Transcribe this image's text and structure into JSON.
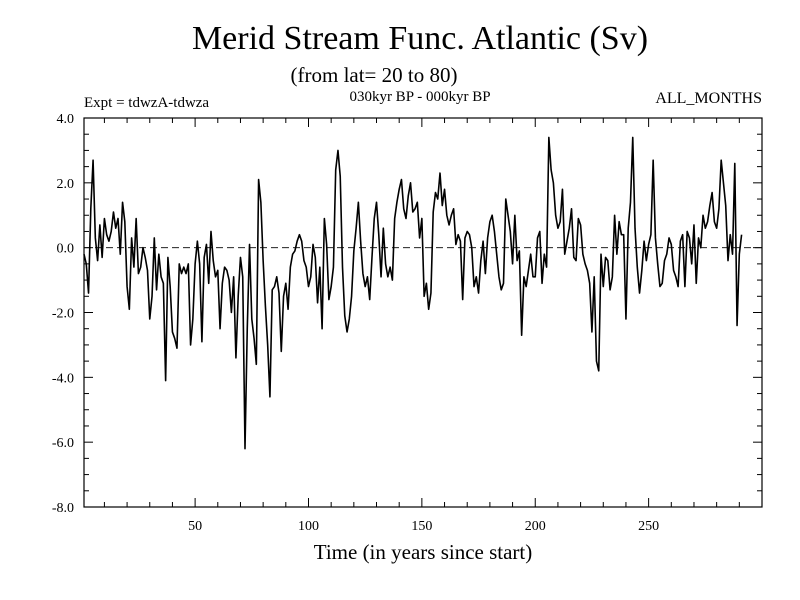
{
  "chart_data": {
    "type": "line",
    "title": "Merid Stream Func. Atlantic (Sv)",
    "subtitle": "(from lat= 20 to 80)",
    "annotations": {
      "left": "Expt = tdwzA-tdwza",
      "center": "030kyr BP - 000kyr BP",
      "right": "ALL_MONTHS"
    },
    "xlabel": "Time (in years since start)",
    "ylabel": "",
    "xlim": [
      1,
      300
    ],
    "ylim": [
      -8,
      4
    ],
    "xticks": [
      50,
      100,
      150,
      200,
      250
    ],
    "xtick_labels": [
      "50",
      "100",
      "150",
      "200",
      "250"
    ],
    "yticks": [
      4,
      2,
      0,
      -2,
      -4,
      -6,
      -8
    ],
    "ytick_labels": [
      "4.0",
      "2.0",
      "0.0",
      "-2.0",
      "-4.0",
      "-6.0",
      "-8.0"
    ],
    "grid": false,
    "reference_line": {
      "y": 0,
      "style": "dashed"
    },
    "colors": {
      "line": "#000000"
    },
    "series": [
      {
        "x_start": 1,
        "x_step": 1,
        "values": [
          -0.2,
          -0.5,
          -1.4,
          1.2,
          2.7,
          0.3,
          -0.4,
          0.7,
          -0.3,
          0.9,
          0.4,
          0.2,
          0.5,
          1.1,
          0.6,
          0.9,
          -0.2,
          1.4,
          0.8,
          -1.2,
          -1.9,
          0.3,
          -0.6,
          0.9,
          -0.8,
          -0.6,
          0.0,
          -0.3,
          -0.7,
          -2.2,
          -1.5,
          0.3,
          -1.3,
          -0.2,
          -0.9,
          -1.1,
          -4.1,
          -0.3,
          -1.2,
          -2.6,
          -2.8,
          -3.1,
          -0.5,
          -0.8,
          -0.6,
          -0.8,
          -0.5,
          -3.0,
          -2.2,
          -0.5,
          0.2,
          -0.5,
          -2.9,
          -0.3,
          0.1,
          -1.1,
          0.5,
          -0.4,
          -0.9,
          -0.7,
          -2.5,
          -1.1,
          -0.6,
          -0.7,
          -1.0,
          -2.0,
          -0.9,
          -3.4,
          -1.5,
          -0.3,
          -0.9,
          -6.2,
          -2.5,
          0.1,
          -2.2,
          -2.8,
          -3.6,
          2.1,
          1.4,
          -0.4,
          -1.8,
          -3.0,
          -4.6,
          -1.3,
          -1.2,
          -0.9,
          -1.4,
          -3.2,
          -1.5,
          -1.1,
          -1.9,
          -0.6,
          -0.2,
          -0.1,
          0.2,
          0.4,
          0.2,
          -0.4,
          -0.6,
          -1.2,
          -0.9,
          0.1,
          -0.3,
          -1.7,
          -0.6,
          -2.5,
          0.9,
          0.1,
          -1.6,
          -1.2,
          -0.6,
          2.4,
          3.0,
          2.2,
          -0.6,
          -2.1,
          -2.6,
          -2.2,
          -1.5,
          -0.1,
          0.6,
          1.4,
          0.2,
          -0.8,
          -1.2,
          -0.9,
          -1.6,
          -0.3,
          0.9,
          1.4,
          0.4,
          -0.9,
          0.6,
          -0.5,
          -0.9,
          -0.6,
          -1.0,
          0.9,
          1.4,
          1.8,
          2.1,
          1.2,
          0.9,
          1.6,
          2.0,
          1.1,
          1.2,
          1.4,
          0.3,
          0.9,
          -1.5,
          -1.1,
          -1.9,
          -1.4,
          1.1,
          1.7,
          1.5,
          2.3,
          1.3,
          1.8,
          1.0,
          0.7,
          1.0,
          1.2,
          0.1,
          0.4,
          0.2,
          -1.6,
          0.3,
          0.5,
          0.4,
          0.0,
          -1.2,
          -0.9,
          -1.4,
          -0.4,
          0.2,
          -0.8,
          0.3,
          0.8,
          1.0,
          0.5,
          -0.2,
          -0.9,
          -1.3,
          -1.1,
          1.5,
          1.0,
          0.5,
          -0.5,
          1.0,
          -0.4,
          -0.1,
          -2.7,
          -0.9,
          -1.2,
          -0.7,
          -0.2,
          -0.9,
          -0.9,
          0.3,
          0.5,
          -1.1,
          -0.2,
          -0.6,
          3.4,
          2.4,
          2.0,
          1.0,
          0.6,
          0.8,
          1.8,
          -0.2,
          0.2,
          0.6,
          1.2,
          -0.3,
          -0.4,
          0.9,
          0.7,
          -0.2,
          -0.5,
          -0.7,
          -1.1,
          -2.6,
          -0.9,
          -3.5,
          -3.8,
          -0.2,
          -1.2,
          -0.3,
          -0.4,
          -1.3,
          -0.9,
          1.0,
          -0.2,
          0.8,
          0.4,
          0.4,
          -2.2,
          0.6,
          1.4,
          3.4,
          0.6,
          -0.6,
          -1.4,
          -0.7,
          0.2,
          -0.4,
          0.1,
          0.4,
          2.7,
          0.3,
          -0.5,
          -1.2,
          -1.1,
          -0.4,
          -0.2,
          0.3,
          0.1,
          -0.7,
          -0.9,
          -1.2,
          0.2,
          0.4,
          -1.2,
          0.5,
          0.3,
          -0.5,
          0.7,
          -1.1,
          0.3,
          0.0,
          1.0,
          0.6,
          0.8,
          1.3,
          1.7,
          0.8,
          0.6,
          1.2,
          2.7,
          2.0,
          1.3,
          -0.4,
          0.4,
          -0.2,
          2.6,
          -2.4,
          -0.2,
          0.4
        ]
      }
    ]
  }
}
